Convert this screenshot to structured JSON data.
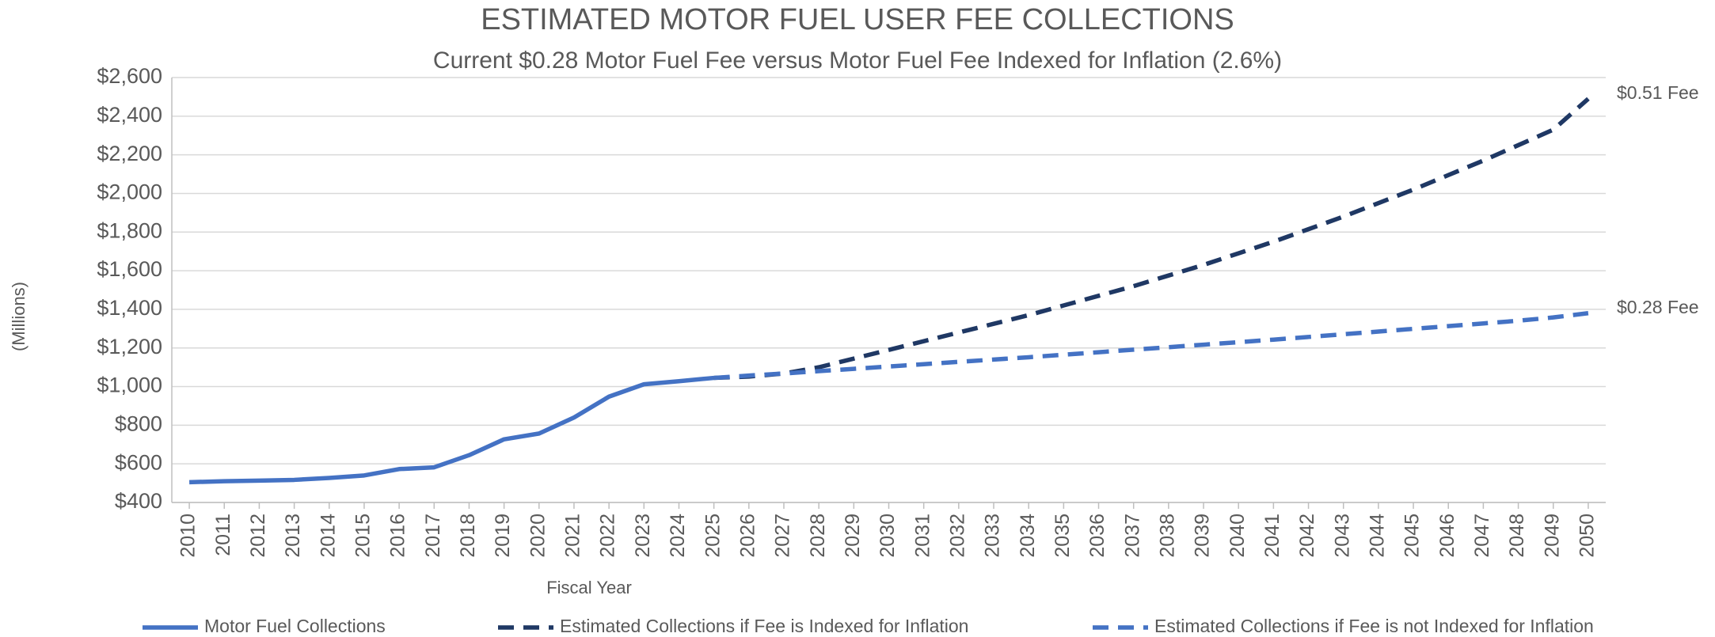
{
  "chart_data": {
    "type": "line",
    "title": "ESTIMATED MOTOR FUEL USER FEE COLLECTIONS",
    "subtitle": "Current $0.28 Motor Fuel Fee versus Motor Fuel Fee Indexed for Inflation (2.6%)",
    "x_label": "Fiscal Year",
    "y_label": "(Millions)",
    "x": [
      2010,
      2011,
      2012,
      2013,
      2014,
      2015,
      2016,
      2017,
      2018,
      2019,
      2020,
      2021,
      2022,
      2023,
      2024,
      2025,
      2026,
      2027,
      2028,
      2029,
      2030,
      2031,
      2032,
      2033,
      2034,
      2035,
      2036,
      2037,
      2038,
      2039,
      2040,
      2041,
      2042,
      2043,
      2044,
      2045,
      2046,
      2047,
      2048,
      2049,
      2050
    ],
    "xlim": [
      2009.5,
      2050.5
    ],
    "xticks": [
      2010,
      2011,
      2012,
      2013,
      2014,
      2015,
      2016,
      2017,
      2018,
      2019,
      2020,
      2021,
      2022,
      2023,
      2024,
      2025,
      2026,
      2027,
      2028,
      2029,
      2030,
      2031,
      2032,
      2033,
      2034,
      2035,
      2036,
      2037,
      2038,
      2039,
      2040,
      2041,
      2042,
      2043,
      2044,
      2045,
      2046,
      2047,
      2048,
      2049,
      2050
    ],
    "ylim": [
      400,
      2600
    ],
    "yticks": [
      {
        "value": 400,
        "label": "$400"
      },
      {
        "value": 600,
        "label": "$600"
      },
      {
        "value": 800,
        "label": "$800"
      },
      {
        "value": 1000,
        "label": "$1,000"
      },
      {
        "value": 1200,
        "label": "$1,200"
      },
      {
        "value": 1400,
        "label": "$1,400"
      },
      {
        "value": 1600,
        "label": "$1,600"
      },
      {
        "value": 1800,
        "label": "$1,800"
      },
      {
        "value": 2000,
        "label": "$2,000"
      },
      {
        "value": 2200,
        "label": "$2,200"
      },
      {
        "value": 2400,
        "label": "$2,400"
      },
      {
        "value": 2600,
        "label": "$2,600"
      }
    ],
    "grid": true,
    "legend": "bottom",
    "series": [
      {
        "name": "Motor Fuel Collections",
        "color": "#4472c4",
        "dash": "solid",
        "values": [
          505,
          510,
          513,
          517,
          527,
          540,
          573,
          582,
          645,
          727,
          757,
          840,
          948,
          1012,
          1028,
          1045,
          null,
          null,
          null,
          null,
          null,
          null,
          null,
          null,
          null,
          null,
          null,
          null,
          null,
          null,
          null,
          null,
          null,
          null,
          null,
          null,
          null,
          null,
          null,
          null,
          null
        ]
      },
      {
        "name": "Estimated Collections if Fee is Indexed for Inflation",
        "color": "#1f3864",
        "dash": "dashed",
        "values": [
          null,
          null,
          null,
          null,
          null,
          null,
          null,
          null,
          null,
          null,
          null,
          null,
          null,
          null,
          null,
          1045,
          1052,
          1068,
          1100,
          1145,
          1190,
          1235,
          1280,
          1325,
          1370,
          1420,
          1470,
          1520,
          1575,
          1630,
          1690,
          1750,
          1815,
          1880,
          1950,
          2020,
          2095,
          2170,
          2250,
          2330,
          2490
        ]
      },
      {
        "name": "Estimated Collections if Fee is not Indexed for Inflation",
        "color": "#4472c4",
        "dash": "dashed",
        "values": [
          null,
          null,
          null,
          null,
          null,
          null,
          null,
          null,
          null,
          null,
          null,
          null,
          null,
          null,
          null,
          1045,
          1057,
          1068,
          1080,
          1092,
          1104,
          1116,
          1128,
          1140,
          1152,
          1165,
          1178,
          1191,
          1204,
          1217,
          1230,
          1243,
          1257,
          1271,
          1285,
          1299,
          1313,
          1327,
          1341,
          1358,
          1380
        ]
      }
    ],
    "annotations": [
      {
        "text": "$0.51 Fee",
        "series": 1
      },
      {
        "text": "$0.28 Fee",
        "series": 2
      }
    ]
  }
}
